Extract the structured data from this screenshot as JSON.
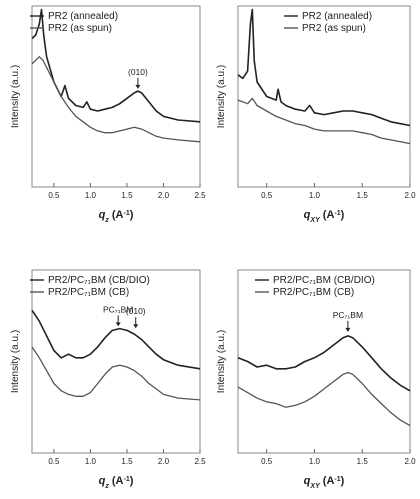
{
  "chart_data": [
    {
      "type": "line",
      "panel": "top-left",
      "xlabel": "q_z (A^-1)",
      "xlabel_main": "q",
      "xlabel_sub": "z",
      "xlabel_unit": " (A",
      "xlabel_exp": "-1",
      "xlabel_close": ")",
      "ylabel": "Intensity (a.u.)",
      "xlim": [
        0.2,
        2.5
      ],
      "ylim": [
        0,
        100
      ],
      "xticks": [
        0.5,
        1.0,
        1.5,
        2.0,
        2.5
      ],
      "xtick_labels": [
        "0.5",
        "1.0",
        "1.5",
        "2.0",
        "2.5"
      ],
      "legend_position": "top-left",
      "annotations": [
        {
          "text": "(010)",
          "x": 1.65,
          "arrow_to_y": 52
        }
      ],
      "series": [
        {
          "name": "PR2 (annealed)",
          "color": "#222222",
          "x": [
            0.2,
            0.25,
            0.3,
            0.33,
            0.36,
            0.4,
            0.5,
            0.6,
            0.65,
            0.7,
            0.8,
            0.9,
            0.95,
            1.0,
            1.1,
            1.2,
            1.3,
            1.4,
            1.5,
            1.6,
            1.65,
            1.7,
            1.8,
            1.9,
            2.0,
            2.2,
            2.5
          ],
          "y": [
            82,
            84,
            90,
            98,
            84,
            72,
            58,
            50,
            56,
            49,
            45,
            44,
            47,
            43,
            42,
            43,
            44,
            46,
            49,
            52,
            53,
            52,
            47,
            42,
            39,
            37,
            36
          ]
        },
        {
          "name": "PR2 (as spun)",
          "color": "#555555",
          "x": [
            0.2,
            0.25,
            0.3,
            0.35,
            0.4,
            0.5,
            0.6,
            0.7,
            0.8,
            0.9,
            1.0,
            1.1,
            1.2,
            1.3,
            1.4,
            1.5,
            1.6,
            1.7,
            1.8,
            1.9,
            2.0,
            2.2,
            2.5
          ],
          "y": [
            68,
            70,
            72,
            70,
            66,
            58,
            50,
            44,
            39,
            36,
            33,
            31,
            30,
            30,
            31,
            32,
            33,
            32,
            30,
            28,
            27,
            26,
            25
          ]
        }
      ]
    },
    {
      "type": "line",
      "panel": "top-right",
      "xlabel": "q_XY (A^-1)",
      "xlabel_main": "q",
      "xlabel_sub": "XY",
      "xlabel_unit": " (A",
      "xlabel_exp": "-1",
      "xlabel_close": ")",
      "ylabel": "Intensity (a.u.)",
      "xlim": [
        0.2,
        2.0
      ],
      "ylim": [
        0,
        100
      ],
      "xticks": [
        0.5,
        1.0,
        1.5,
        2.0
      ],
      "xtick_labels": [
        "0.5",
        "1.0",
        "1.5",
        "2.0"
      ],
      "legend_position": "top-right",
      "annotations": [],
      "series": [
        {
          "name": "PR2 (annealed)",
          "color": "#222222",
          "x": [
            0.2,
            0.25,
            0.3,
            0.33,
            0.35,
            0.37,
            0.4,
            0.5,
            0.6,
            0.62,
            0.65,
            0.7,
            0.8,
            0.9,
            0.95,
            1.0,
            1.1,
            1.2,
            1.3,
            1.4,
            1.5,
            1.6,
            1.7,
            1.8,
            1.9,
            2.0
          ],
          "y": [
            62,
            60,
            64,
            90,
            98,
            70,
            58,
            50,
            48,
            54,
            47,
            45,
            43,
            42,
            45,
            41,
            40,
            41,
            42,
            42,
            41,
            40,
            38,
            36,
            35,
            34
          ]
        },
        {
          "name": "PR2 (as spun)",
          "color": "#555555",
          "x": [
            0.2,
            0.25,
            0.3,
            0.35,
            0.4,
            0.5,
            0.6,
            0.7,
            0.8,
            0.9,
            1.0,
            1.1,
            1.2,
            1.3,
            1.4,
            1.5,
            1.6,
            1.7,
            1.8,
            1.9,
            2.0
          ],
          "y": [
            48,
            47,
            46,
            49,
            45,
            42,
            39,
            37,
            35,
            34,
            32,
            31,
            31,
            31,
            31,
            30,
            29,
            27,
            26,
            25,
            24
          ]
        }
      ]
    },
    {
      "type": "line",
      "panel": "bottom-left",
      "xlabel": "q_z (A^-1)",
      "xlabel_main": "q",
      "xlabel_sub": "z",
      "xlabel_unit": " (A",
      "xlabel_exp": "-1",
      "xlabel_close": ")",
      "ylabel": "Intensity (a.u.)",
      "xlim": [
        0.2,
        2.5
      ],
      "ylim": [
        0,
        100
      ],
      "xticks": [
        0.5,
        1.0,
        1.5,
        2.0,
        2.5
      ],
      "xtick_labels": [
        "0.5",
        "1.0",
        "1.5",
        "2.0",
        "2.5"
      ],
      "legend_position": "top-left",
      "annotations": [
        {
          "text": "PC₇₁BM",
          "x": 1.38,
          "arrow_to_y": 67
        },
        {
          "text": "(010)",
          "x": 1.62,
          "arrow_to_y": 66
        }
      ],
      "series": [
        {
          "name": "PR2/PC₇₁BM (CB/DIO)",
          "color": "#222222",
          "x": [
            0.2,
            0.3,
            0.4,
            0.5,
            0.6,
            0.7,
            0.8,
            0.9,
            1.0,
            1.1,
            1.2,
            1.3,
            1.4,
            1.5,
            1.6,
            1.7,
            1.8,
            1.9,
            2.0,
            2.2,
            2.5
          ],
          "y": [
            78,
            72,
            64,
            56,
            52,
            54,
            52,
            52,
            54,
            58,
            63,
            67,
            68,
            67,
            65,
            62,
            58,
            54,
            51,
            48,
            46
          ]
        },
        {
          "name": "PR2/PC₇₁BM (CB)",
          "color": "#555555",
          "x": [
            0.2,
            0.3,
            0.4,
            0.5,
            0.6,
            0.7,
            0.8,
            0.9,
            1.0,
            1.1,
            1.2,
            1.3,
            1.4,
            1.5,
            1.6,
            1.7,
            1.8,
            1.9,
            2.0,
            2.2,
            2.5
          ],
          "y": [
            58,
            52,
            45,
            38,
            34,
            32,
            31,
            31,
            33,
            38,
            43,
            47,
            48,
            47,
            45,
            42,
            38,
            35,
            32,
            30,
            29
          ]
        }
      ]
    },
    {
      "type": "line",
      "panel": "bottom-right",
      "xlabel": "q_XY (A^-1)",
      "xlabel_main": "q",
      "xlabel_sub": "XY",
      "xlabel_unit": " (A",
      "xlabel_exp": "-1",
      "xlabel_close": ")",
      "ylabel": "Intensity (a.u.)",
      "xlim": [
        0.2,
        2.0
      ],
      "ylim": [
        0,
        100
      ],
      "xticks": [
        0.5,
        1.0,
        1.5,
        2.0
      ],
      "xtick_labels": [
        "0.5",
        "1.0",
        "1.5",
        "2.0"
      ],
      "legend_position": "top-right",
      "annotations": [
        {
          "text": "PC₇₁BM",
          "x": 1.35,
          "arrow_to_y": 64
        }
      ],
      "series": [
        {
          "name": "PR2/PC₇₁BM (CB/DIO)",
          "color": "#222222",
          "x": [
            0.2,
            0.3,
            0.4,
            0.5,
            0.6,
            0.7,
            0.8,
            0.9,
            1.0,
            1.1,
            1.2,
            1.3,
            1.35,
            1.4,
            1.5,
            1.6,
            1.7,
            1.8,
            1.9,
            2.0
          ],
          "y": [
            52,
            50,
            47,
            48,
            46,
            46,
            47,
            50,
            52,
            55,
            59,
            63,
            64,
            63,
            58,
            52,
            46,
            41,
            37,
            34
          ]
        },
        {
          "name": "PR2/PC₇₁BM (CB)",
          "color": "#555555",
          "x": [
            0.2,
            0.3,
            0.4,
            0.5,
            0.6,
            0.7,
            0.8,
            0.9,
            1.0,
            1.1,
            1.2,
            1.3,
            1.35,
            1.4,
            1.5,
            1.6,
            1.7,
            1.8,
            1.9,
            2.0
          ],
          "y": [
            36,
            33,
            30,
            28,
            27,
            25,
            26,
            28,
            31,
            35,
            39,
            43,
            44,
            43,
            38,
            32,
            27,
            22,
            18,
            15
          ]
        }
      ]
    }
  ]
}
